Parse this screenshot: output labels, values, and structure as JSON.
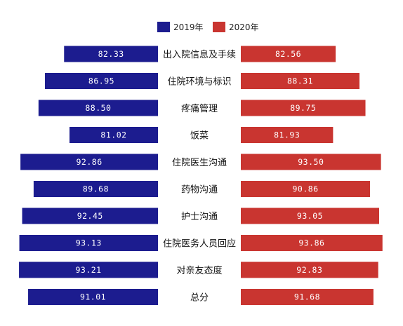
{
  "chart_data": {
    "type": "bar",
    "orientation": "horizontal-butterfly",
    "categories": [
      "出入院信息及手续",
      "住院环境与标识",
      "疼痛管理",
      "饭菜",
      "住院医生沟通",
      "药物沟通",
      "护士沟通",
      "住院医务人员回应",
      "对亲友态度",
      "总分"
    ],
    "series": [
      {
        "name": "2019年",
        "color": "#1c1c8f",
        "side": "left",
        "values": [
          82.33,
          86.95,
          88.5,
          81.02,
          92.86,
          89.68,
          92.45,
          93.13,
          93.21,
          91.01
        ],
        "labels": [
          "82.33",
          "86.95",
          "88.50",
          "81.02",
          "92.86",
          "89.68",
          "92.45",
          "93.13",
          "93.21",
          "91.01"
        ]
      },
      {
        "name": "2020年",
        "color": "#c93530",
        "side": "right",
        "values": [
          82.56,
          88.31,
          89.75,
          81.93,
          93.5,
          90.86,
          93.05,
          93.86,
          92.83,
          91.68
        ],
        "labels": [
          "82.56",
          "88.31",
          "89.75",
          "81.93",
          "93.50",
          "90.86",
          "93.05",
          "93.86",
          "92.83",
          "91.68"
        ]
      }
    ],
    "legend_position": "top-center",
    "grid": false
  }
}
